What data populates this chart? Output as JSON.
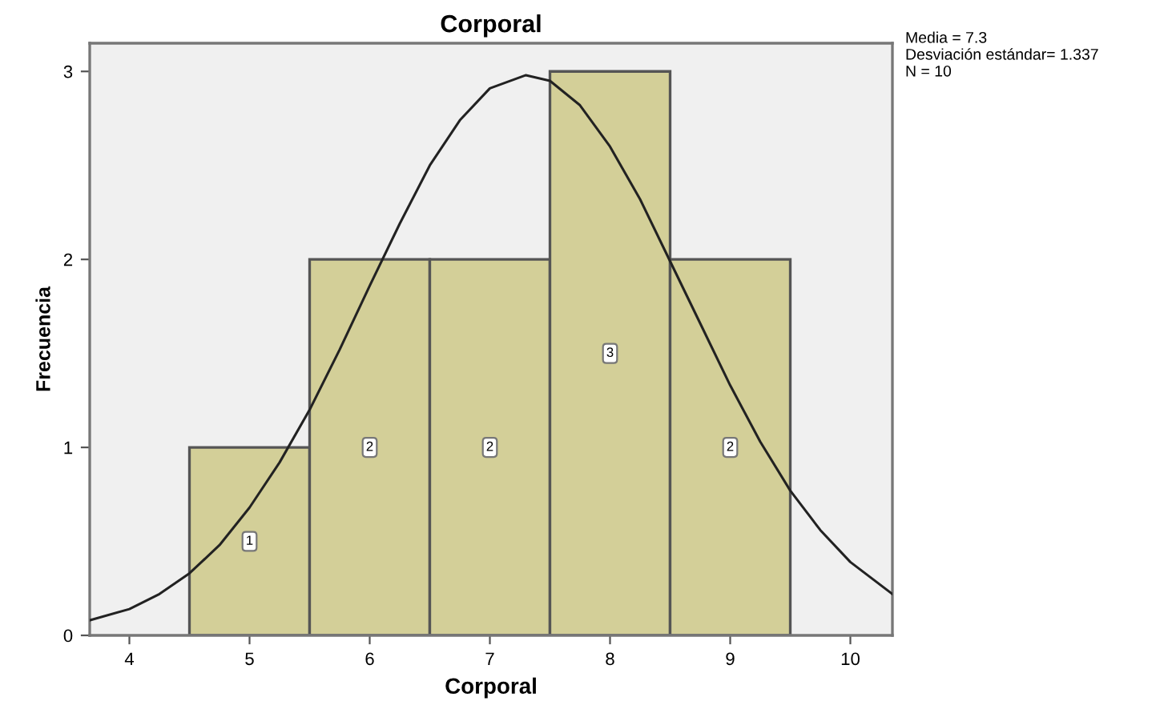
{
  "chart_data": {
    "type": "histogram",
    "title": "Corporal",
    "xlabel": "Corporal",
    "ylabel": "Frecuencia",
    "bins": [
      4.5,
      5.5,
      6.5,
      7.5,
      8.5,
      9.5
    ],
    "values": [
      1,
      2,
      2,
      3,
      2
    ],
    "color": "#d3cf98",
    "value_labels": [
      "1",
      "2",
      "2",
      "3",
      "2"
    ],
    "series": [
      {
        "type": "line",
        "color": "#222222",
        "x": [
          3.67,
          4,
          4.25,
          4.5,
          4.75,
          5,
          5.25,
          5.5,
          5.75,
          6,
          6.25,
          6.5,
          6.75,
          7,
          7.3,
          7.5,
          7.75,
          8,
          8.25,
          8.5,
          8.75,
          9,
          9.25,
          9.5,
          9.75,
          10,
          10.35
        ],
        "values": [
          0.08,
          0.14,
          0.22,
          0.33,
          0.48,
          0.68,
          0.92,
          1.2,
          1.52,
          1.86,
          2.19,
          2.5,
          2.74,
          2.91,
          2.98,
          2.95,
          2.82,
          2.6,
          2.32,
          1.99,
          1.66,
          1.33,
          1.03,
          0.77,
          0.56,
          0.39,
          0.22
        ]
      }
    ],
    "xlim": [
      3.67,
      10.35
    ],
    "ylim": [
      0,
      3.15
    ],
    "xticks": [
      4,
      5,
      6,
      7,
      8,
      9,
      10
    ],
    "yticks": [
      0,
      1,
      2,
      3
    ],
    "grid": false,
    "legend": false,
    "annotations": [
      "Media = 7.3",
      "Desviación estándar= 1.337",
      "N = 10"
    ]
  }
}
